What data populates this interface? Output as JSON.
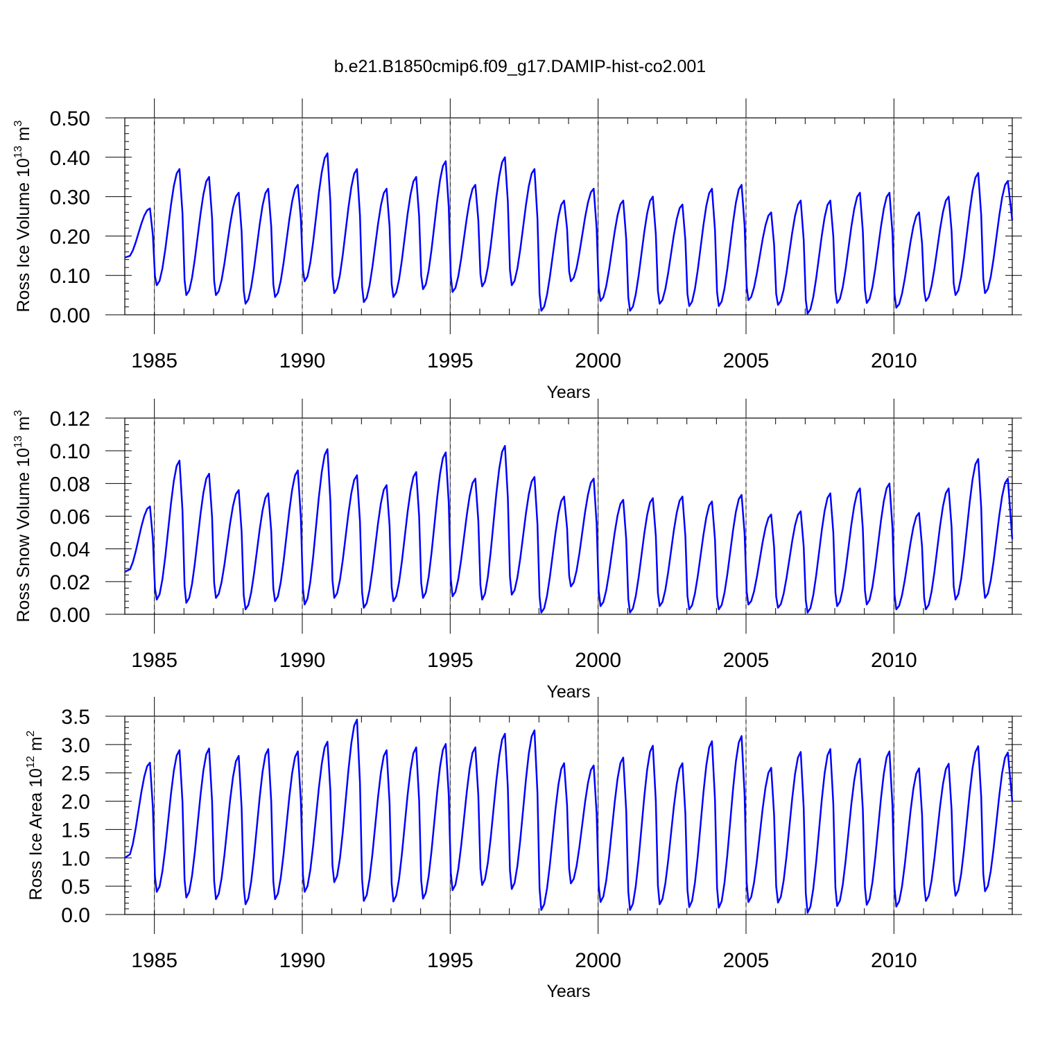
{
  "title": "b.e21.B1850cmip6.f09_g17.DAMIP-hist-co2.001",
  "colors": {
    "series": "#0000ff",
    "grid": "#888888",
    "axis": "#000000"
  },
  "chart_data": [
    {
      "type": "line",
      "ylabel": {
        "text": "Ross Ice Volume 10",
        "exp": "13",
        "unit": "m",
        "unit_exp": "3"
      },
      "xlabel": "Years",
      "xlim": [
        1984.0,
        2014.0
      ],
      "ylim": [
        0.0,
        0.5
      ],
      "xticks": [
        1985,
        1990,
        1995,
        2000,
        2005,
        2010
      ],
      "yticks": [
        "0.00",
        "0.10",
        "0.20",
        "0.30",
        "0.40",
        "0.50"
      ],
      "grid": "vertical dashed at major x ticks",
      "series": [
        {
          "peaks": [
            0.27,
            0.37,
            0.35,
            0.31,
            0.32,
            0.33,
            0.41,
            0.37,
            0.32,
            0.35,
            0.39,
            0.33,
            0.4,
            0.37,
            0.29,
            0.32,
            0.29,
            0.3,
            0.28,
            0.32,
            0.33,
            0.26,
            0.29,
            0.29,
            0.31,
            0.31,
            0.26,
            0.3,
            0.36,
            0.34
          ],
          "troughs": [
            0.075,
            0.05,
            0.05,
            0.028,
            0.045,
            0.085,
            0.055,
            0.032,
            0.045,
            0.065,
            0.058,
            0.072,
            0.075,
            0.01,
            0.085,
            0.035,
            0.01,
            0.028,
            0.022,
            0.022,
            0.037,
            0.025,
            0.003,
            0.03,
            0.03,
            0.018,
            0.035,
            0.05,
            0.055
          ],
          "start": 0.145,
          "end": 0.24
        }
      ]
    },
    {
      "type": "line",
      "ylabel": {
        "text": "Ross Snow Volume 10",
        "exp": "13",
        "unit": "m",
        "unit_exp": "3"
      },
      "xlabel": "Years",
      "xlim": [
        1984.0,
        2014.0
      ],
      "ylim": [
        0.0,
        0.12
      ],
      "xticks": [
        1985,
        1990,
        1995,
        2000,
        2005,
        2010
      ],
      "yticks": [
        "0.00",
        "0.02",
        "0.04",
        "0.06",
        "0.08",
        "0.10",
        "0.12"
      ],
      "grid": "vertical dashed at major x ticks",
      "series": [
        {
          "peaks": [
            0.066,
            0.094,
            0.086,
            0.076,
            0.074,
            0.088,
            0.101,
            0.085,
            0.079,
            0.087,
            0.099,
            0.083,
            0.103,
            0.084,
            0.072,
            0.083,
            0.07,
            0.071,
            0.072,
            0.069,
            0.073,
            0.061,
            0.063,
            0.074,
            0.077,
            0.08,
            0.062,
            0.077,
            0.095,
            0.083
          ],
          "troughs": [
            0.009,
            0.007,
            0.01,
            0.003,
            0.008,
            0.006,
            0.01,
            0.004,
            0.008,
            0.01,
            0.011,
            0.009,
            0.012,
            0.001,
            0.017,
            0.005,
            0.001,
            0.005,
            0.003,
            0.003,
            0.006,
            0.004,
            0.001,
            0.005,
            0.006,
            0.003,
            0.003,
            0.009,
            0.01
          ],
          "start": 0.026,
          "end": 0.046
        }
      ]
    },
    {
      "type": "line",
      "ylabel": {
        "text": "Ross Ice Area 10",
        "exp": "12",
        "unit": "m",
        "unit_exp": "2"
      },
      "xlabel": "Years",
      "xlim": [
        1984.0,
        2014.0
      ],
      "ylim": [
        0.0,
        3.5
      ],
      "xticks": [
        1985,
        1990,
        1995,
        2000,
        2005,
        2010
      ],
      "yticks": [
        "0.0",
        "0.5",
        "1.0",
        "1.5",
        "2.0",
        "2.5",
        "3.0",
        "3.5"
      ],
      "grid": "vertical dashed at major x ticks",
      "series": [
        {
          "peaks": [
            2.68,
            2.9,
            2.93,
            2.8,
            2.92,
            2.88,
            3.05,
            3.44,
            2.9,
            2.95,
            3.01,
            2.95,
            3.19,
            3.25,
            2.67,
            2.63,
            2.77,
            2.98,
            2.67,
            3.06,
            3.15,
            2.59,
            2.87,
            2.92,
            2.75,
            2.88,
            2.58,
            2.66,
            2.97,
            2.86
          ],
          "troughs": [
            0.4,
            0.3,
            0.27,
            0.18,
            0.27,
            0.4,
            0.57,
            0.24,
            0.23,
            0.28,
            0.43,
            0.52,
            0.45,
            0.08,
            0.55,
            0.22,
            0.08,
            0.18,
            0.13,
            0.12,
            0.22,
            0.21,
            0.03,
            0.15,
            0.17,
            0.14,
            0.24,
            0.33,
            0.41
          ],
          "start": 1.0,
          "end": 2.0
        }
      ]
    }
  ]
}
